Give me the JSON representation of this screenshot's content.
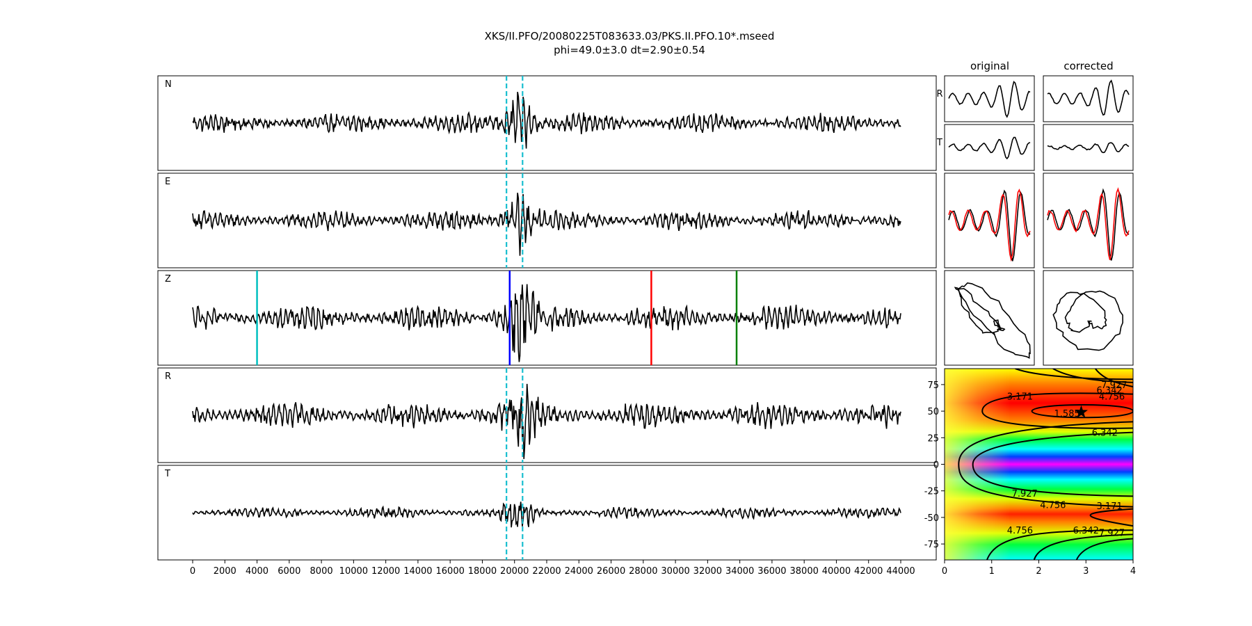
{
  "title": {
    "line1": "XKS/II.PFO/20080225T083633.03/PKS.II.PFO.10*.mseed",
    "line2": "phi=49.0±3.0 dt=2.90±0.54"
  },
  "colors": {
    "trace": "#000000",
    "window_marker": "#17becf",
    "pick_cyan": "#00bfbf",
    "pick_blue": "#0000ff",
    "pick_red": "#ff0000",
    "pick_green": "#008000",
    "particle_overlay": "#ff0000"
  },
  "chart_data": [
    {
      "type": "line",
      "name": "seismogram-panels",
      "traces": [
        {
          "label": "N",
          "peak": "moderate"
        },
        {
          "label": "E",
          "peak": "moderate"
        },
        {
          "label": "Z",
          "peak": "large"
        },
        {
          "label": "R",
          "peak": "large"
        },
        {
          "label": "T",
          "peak": "small"
        }
      ],
      "x_range": [
        0,
        44000
      ],
      "xticks": [
        0,
        2000,
        4000,
        6000,
        8000,
        10000,
        12000,
        14000,
        16000,
        18000,
        20000,
        22000,
        24000,
        26000,
        28000,
        30000,
        32000,
        34000,
        36000,
        38000,
        40000,
        42000,
        44000
      ],
      "analysis_window": [
        19500,
        20500
      ],
      "analysis_window_panels": [
        "N",
        "E",
        "R",
        "T"
      ],
      "phase_picks": [
        {
          "panel": "Z",
          "x": 4000,
          "color": "cyan"
        },
        {
          "panel": "Z",
          "x": 19700,
          "color": "blue"
        },
        {
          "panel": "Z",
          "x": 28500,
          "color": "red"
        },
        {
          "panel": "Z",
          "x": 33800,
          "color": "green"
        }
      ],
      "grid": false
    },
    {
      "type": "line",
      "name": "particle-motion-panels",
      "column_titles": [
        "original",
        "corrected"
      ],
      "row_labels": [
        "R",
        "T"
      ],
      "rows": [
        "R component",
        "T component",
        "waveform overlay (black/red)",
        "particle motion"
      ]
    },
    {
      "type": "heatmap",
      "name": "error-surface",
      "x_range": [
        0,
        4
      ],
      "y_range": [
        -90,
        90
      ],
      "xticks": [
        0,
        1,
        2,
        3,
        4
      ],
      "yticks": [
        -75,
        -50,
        -25,
        0,
        25,
        50,
        75
      ],
      "colormap": "gist_rainbow",
      "contour_levels": [
        "1.585",
        "3.171",
        "4.756",
        "6.342",
        "7.927"
      ],
      "minimum": {
        "dt": 2.9,
        "phi": 49.0
      },
      "grid": false
    }
  ]
}
